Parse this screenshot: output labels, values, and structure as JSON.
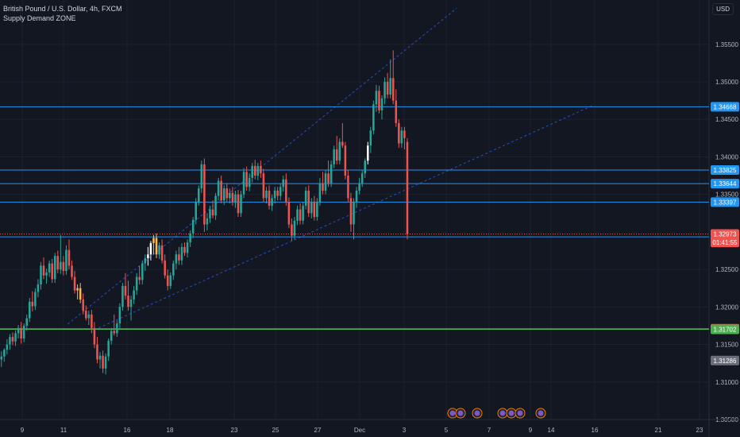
{
  "header": {
    "title": "British Pound / U.S. Dollar, 4h, FXCM",
    "indicator": "Supply Demand ZONE"
  },
  "currency_button": "USD",
  "colors": {
    "background": "#131722",
    "grid": "#1e222d",
    "up": "#26a69a",
    "down": "#ef5350",
    "highlight": "#ffb74d",
    "white_candle": "#ffffff",
    "zone_line": "#2196f3",
    "green_line": "#4caf50",
    "channel": "#2962ff",
    "axis_text": "#b2b5be"
  },
  "chart_data": {
    "type": "candlestick",
    "title": "British Pound / U.S. Dollar, 4h, FXCM",
    "ylim": [
      1.305,
      1.359
    ],
    "y_ticks": [
      "1.35500",
      "1.35000",
      "1.34500",
      "1.34000",
      "1.33500",
      "1.32500",
      "1.32000",
      "1.31500",
      "1.31000",
      "1.30500"
    ],
    "x_ticks": [
      "9",
      "11",
      "16",
      "18",
      "23",
      "25",
      "27",
      "Dec",
      "3",
      "5",
      "7",
      "9",
      "14",
      "16",
      "21",
      "23"
    ],
    "grid": true,
    "horizontal_levels": [
      {
        "value": 1.34668,
        "label": "1.34668",
        "color": "#2196f3"
      },
      {
        "value": 1.33825,
        "label": "1.33825",
        "color": "#2196f3"
      },
      {
        "value": 1.33644,
        "label": "1.33644",
        "color": "#2196f3"
      },
      {
        "value": 1.33397,
        "label": "1.33397",
        "color": "#2196f3"
      },
      {
        "value": 1.32934,
        "label": "1.32934",
        "color": "#2196f3"
      },
      {
        "value": 1.3171,
        "label": "1.31710",
        "color": "#ef5350"
      },
      {
        "value": 1.31702,
        "label": "1.31702",
        "color": "#4caf50"
      }
    ],
    "price_tags": [
      {
        "value": 1.32973,
        "label": "1.32973",
        "color": "#ef5350"
      },
      {
        "value": 1.3286,
        "label": "01:41:55",
        "color": "#ef5350"
      },
      {
        "value": 1.31286,
        "label": "1.31286",
        "color": "#6a6d78"
      }
    ],
    "last_price": 1.32973,
    "channel": [
      {
        "from_bar": 24,
        "from_price": 1.3177,
        "to_bar": 162,
        "to_price": 1.3598
      },
      {
        "from_bar": 35,
        "from_price": 1.3172,
        "to_bar": 210,
        "to_price": 1.3468
      }
    ],
    "candles": [
      [
        1.313,
        1.3141,
        1.312,
        1.3134,
        "u"
      ],
      [
        1.3134,
        1.3145,
        1.3127,
        1.3143,
        "u"
      ],
      [
        1.3143,
        1.3157,
        1.3137,
        1.315,
        "u"
      ],
      [
        1.315,
        1.3164,
        1.3143,
        1.316,
        "u"
      ],
      [
        1.316,
        1.3166,
        1.3149,
        1.3154,
        "d"
      ],
      [
        1.3154,
        1.3169,
        1.3148,
        1.3165,
        "u"
      ],
      [
        1.3165,
        1.3176,
        1.3158,
        1.3172,
        "u"
      ],
      [
        1.3172,
        1.318,
        1.3151,
        1.3158,
        "d"
      ],
      [
        1.3158,
        1.3178,
        1.3153,
        1.3175,
        "u"
      ],
      [
        1.3175,
        1.319,
        1.3168,
        1.3185,
        "u"
      ],
      [
        1.3185,
        1.3212,
        1.318,
        1.3207,
        "u"
      ],
      [
        1.3207,
        1.3221,
        1.3194,
        1.3201,
        "d"
      ],
      [
        1.3201,
        1.3225,
        1.3196,
        1.322,
        "u"
      ],
      [
        1.322,
        1.3237,
        1.3213,
        1.323,
        "u"
      ],
      [
        1.323,
        1.326,
        1.3223,
        1.3255,
        "u"
      ],
      [
        1.3255,
        1.3266,
        1.3237,
        1.3242,
        "d"
      ],
      [
        1.3242,
        1.3251,
        1.3231,
        1.3246,
        "u"
      ],
      [
        1.3246,
        1.3262,
        1.324,
        1.3258,
        "u"
      ],
      [
        1.3258,
        1.3264,
        1.3232,
        1.3237,
        "d"
      ],
      [
        1.3237,
        1.3272,
        1.3232,
        1.3268,
        "u"
      ],
      [
        1.3268,
        1.3275,
        1.3245,
        1.325,
        "d"
      ],
      [
        1.325,
        1.3296,
        1.3244,
        1.326,
        "u"
      ],
      [
        1.326,
        1.3268,
        1.3242,
        1.3248,
        "d"
      ],
      [
        1.3248,
        1.3282,
        1.3243,
        1.3276,
        "u"
      ],
      [
        1.3276,
        1.329,
        1.325,
        1.3255,
        "d"
      ],
      [
        1.3255,
        1.3262,
        1.3236,
        1.324,
        "d"
      ],
      [
        1.324,
        1.3248,
        1.3218,
        1.3222,
        "d"
      ],
      [
        1.3222,
        1.323,
        1.321,
        1.3225,
        "h"
      ],
      [
        1.3225,
        1.3232,
        1.3205,
        1.321,
        "h"
      ],
      [
        1.321,
        1.3218,
        1.319,
        1.3195,
        "d"
      ],
      [
        1.3195,
        1.3202,
        1.3182,
        1.3185,
        "d"
      ],
      [
        1.3185,
        1.3195,
        1.3176,
        1.319,
        "u"
      ],
      [
        1.319,
        1.3196,
        1.3165,
        1.3172,
        "d"
      ],
      [
        1.3172,
        1.318,
        1.3145,
        1.315,
        "d"
      ],
      [
        1.315,
        1.316,
        1.3125,
        1.313,
        "d"
      ],
      [
        1.313,
        1.314,
        1.3118,
        1.3135,
        "u"
      ],
      [
        1.3135,
        1.3142,
        1.3112,
        1.3118,
        "d"
      ],
      [
        1.3118,
        1.3138,
        1.311,
        1.3134,
        "u"
      ],
      [
        1.3134,
        1.3158,
        1.3128,
        1.3155,
        "u"
      ],
      [
        1.3155,
        1.3172,
        1.315,
        1.3168,
        "u"
      ],
      [
        1.3168,
        1.319,
        1.3162,
        1.3165,
        "d"
      ],
      [
        1.3165,
        1.3182,
        1.316,
        1.3178,
        "u"
      ],
      [
        1.3178,
        1.3205,
        1.3172,
        1.32,
        "u"
      ],
      [
        1.32,
        1.3232,
        1.3195,
        1.3228,
        "u"
      ],
      [
        1.3228,
        1.3245,
        1.321,
        1.3215,
        "d"
      ],
      [
        1.3215,
        1.3235,
        1.3195,
        1.32,
        "d"
      ],
      [
        1.32,
        1.3215,
        1.3182,
        1.321,
        "u"
      ],
      [
        1.321,
        1.3228,
        1.3204,
        1.3222,
        "u"
      ],
      [
        1.3222,
        1.3245,
        1.3216,
        1.324,
        "u"
      ],
      [
        1.324,
        1.3255,
        1.323,
        1.3236,
        "d"
      ],
      [
        1.3236,
        1.3262,
        1.323,
        1.3258,
        "u"
      ],
      [
        1.3258,
        1.327,
        1.3248,
        1.3265,
        "u"
      ],
      [
        1.3265,
        1.328,
        1.3255,
        1.327,
        "w"
      ],
      [
        1.327,
        1.3288,
        1.3262,
        1.3285,
        "w"
      ],
      [
        1.3285,
        1.3296,
        1.327,
        1.3292,
        "h"
      ],
      [
        1.3292,
        1.3298,
        1.3265,
        1.327,
        "h"
      ],
      [
        1.327,
        1.3286,
        1.3264,
        1.3282,
        "u"
      ],
      [
        1.3282,
        1.329,
        1.3258,
        1.3262,
        "d"
      ],
      [
        1.3262,
        1.327,
        1.3238,
        1.3242,
        "d"
      ],
      [
        1.3242,
        1.325,
        1.3222,
        1.3228,
        "d"
      ],
      [
        1.3228,
        1.3246,
        1.3224,
        1.3242,
        "u"
      ],
      [
        1.3242,
        1.3262,
        1.3236,
        1.3258,
        "u"
      ],
      [
        1.3258,
        1.3275,
        1.325,
        1.327,
        "u"
      ],
      [
        1.327,
        1.328,
        1.3256,
        1.3262,
        "d"
      ],
      [
        1.3262,
        1.3285,
        1.3256,
        1.328,
        "u"
      ],
      [
        1.328,
        1.3286,
        1.3268,
        1.3272,
        "d"
      ],
      [
        1.3272,
        1.329,
        1.3266,
        1.3286,
        "u"
      ],
      [
        1.3286,
        1.3302,
        1.328,
        1.3298,
        "u"
      ],
      [
        1.3298,
        1.332,
        1.3292,
        1.3316,
        "u"
      ],
      [
        1.3316,
        1.3345,
        1.331,
        1.334,
        "u"
      ],
      [
        1.334,
        1.3362,
        1.3335,
        1.3358,
        "u"
      ],
      [
        1.3358,
        1.3395,
        1.3352,
        1.339,
        "u"
      ],
      [
        1.339,
        1.3398,
        1.33,
        1.331,
        "d"
      ],
      [
        1.331,
        1.3325,
        1.3302,
        1.3318,
        "u"
      ],
      [
        1.3318,
        1.3335,
        1.3312,
        1.333,
        "u"
      ],
      [
        1.333,
        1.3342,
        1.3318,
        1.3322,
        "d"
      ],
      [
        1.3322,
        1.3352,
        1.3316,
        1.3348,
        "u"
      ],
      [
        1.3348,
        1.3372,
        1.3342,
        1.3368,
        "u"
      ],
      [
        1.3368,
        1.3375,
        1.3338,
        1.3342,
        "d"
      ],
      [
        1.3342,
        1.3362,
        1.3336,
        1.3358,
        "u"
      ],
      [
        1.3358,
        1.3365,
        1.334,
        1.3345,
        "d"
      ],
      [
        1.3345,
        1.3358,
        1.3338,
        1.3352,
        "u"
      ],
      [
        1.3352,
        1.336,
        1.3335,
        1.334,
        "d"
      ],
      [
        1.334,
        1.3355,
        1.3332,
        1.335,
        "u"
      ],
      [
        1.335,
        1.3356,
        1.332,
        1.3325,
        "d"
      ],
      [
        1.3325,
        1.3355,
        1.332,
        1.335,
        "u"
      ],
      [
        1.335,
        1.3385,
        1.3345,
        1.338,
        "u"
      ],
      [
        1.338,
        1.3387,
        1.3355,
        1.336,
        "d"
      ],
      [
        1.336,
        1.3378,
        1.3354,
        1.3372,
        "u"
      ],
      [
        1.3372,
        1.3392,
        1.3366,
        1.3388,
        "u"
      ],
      [
        1.3388,
        1.3396,
        1.337,
        1.3375,
        "d"
      ],
      [
        1.3375,
        1.3392,
        1.3369,
        1.3388,
        "u"
      ],
      [
        1.3388,
        1.3395,
        1.3372,
        1.3378,
        "d"
      ],
      [
        1.3378,
        1.3384,
        1.334,
        1.3345,
        "d"
      ],
      [
        1.3345,
        1.336,
        1.3338,
        1.3355,
        "u"
      ],
      [
        1.3355,
        1.3362,
        1.333,
        1.3335,
        "d"
      ],
      [
        1.3335,
        1.335,
        1.3328,
        1.3345,
        "u"
      ],
      [
        1.3345,
        1.336,
        1.3338,
        1.3355,
        "u"
      ],
      [
        1.3355,
        1.336,
        1.3342,
        1.3348,
        "d"
      ],
      [
        1.3348,
        1.3365,
        1.3342,
        1.336,
        "u"
      ],
      [
        1.336,
        1.3375,
        1.3354,
        1.337,
        "u"
      ],
      [
        1.337,
        1.3378,
        1.3335,
        1.334,
        "d"
      ],
      [
        1.334,
        1.3346,
        1.3305,
        1.331,
        "d"
      ],
      [
        1.331,
        1.3318,
        1.3288,
        1.3295,
        "d"
      ],
      [
        1.3295,
        1.332,
        1.329,
        1.3315,
        "u"
      ],
      [
        1.3315,
        1.3335,
        1.3309,
        1.333,
        "u"
      ],
      [
        1.333,
        1.3338,
        1.331,
        1.3315,
        "d"
      ],
      [
        1.3315,
        1.334,
        1.331,
        1.3335,
        "u"
      ],
      [
        1.3335,
        1.336,
        1.333,
        1.3355,
        "u"
      ],
      [
        1.3355,
        1.3362,
        1.332,
        1.3325,
        "d"
      ],
      [
        1.3325,
        1.3345,
        1.3318,
        1.334,
        "u"
      ],
      [
        1.334,
        1.3348,
        1.3315,
        1.332,
        "d"
      ],
      [
        1.332,
        1.3345,
        1.3315,
        1.334,
        "u"
      ],
      [
        1.334,
        1.3372,
        1.3335,
        1.3365,
        "u"
      ],
      [
        1.3365,
        1.338,
        1.335,
        1.3355,
        "d"
      ],
      [
        1.3355,
        1.3382,
        1.335,
        1.3378,
        "u"
      ],
      [
        1.3378,
        1.3395,
        1.336,
        1.3365,
        "d"
      ],
      [
        1.3365,
        1.3395,
        1.336,
        1.339,
        "u"
      ],
      [
        1.339,
        1.3415,
        1.3385,
        1.341,
        "u"
      ],
      [
        1.341,
        1.3428,
        1.339,
        1.3395,
        "d"
      ],
      [
        1.3395,
        1.3425,
        1.339,
        1.342,
        "u"
      ],
      [
        1.342,
        1.3445,
        1.3412,
        1.3415,
        "d"
      ],
      [
        1.3415,
        1.342,
        1.337,
        1.3375,
        "d"
      ],
      [
        1.3375,
        1.3382,
        1.334,
        1.3345,
        "d"
      ],
      [
        1.3345,
        1.3352,
        1.33,
        1.331,
        "d"
      ],
      [
        1.331,
        1.3345,
        1.329,
        1.334,
        "u"
      ],
      [
        1.334,
        1.336,
        1.3332,
        1.3355,
        "u"
      ],
      [
        1.3355,
        1.3372,
        1.335,
        1.3365,
        "u"
      ],
      [
        1.3365,
        1.3382,
        1.336,
        1.3378,
        "u"
      ],
      [
        1.3378,
        1.3398,
        1.3372,
        1.3395,
        "u"
      ],
      [
        1.3395,
        1.342,
        1.339,
        1.3415,
        "w"
      ],
      [
        1.3415,
        1.344,
        1.3405,
        1.3435,
        "u"
      ],
      [
        1.3435,
        1.3475,
        1.343,
        1.347,
        "u"
      ],
      [
        1.347,
        1.3496,
        1.346,
        1.3488,
        "u"
      ],
      [
        1.3488,
        1.3495,
        1.3458,
        1.3462,
        "d"
      ],
      [
        1.3462,
        1.3482,
        1.345,
        1.3478,
        "u"
      ],
      [
        1.3478,
        1.3506,
        1.347,
        1.35,
        "u"
      ],
      [
        1.35,
        1.3512,
        1.3478,
        1.3483,
        "d"
      ],
      [
        1.3483,
        1.353,
        1.3478,
        1.3505,
        "u"
      ],
      [
        1.3505,
        1.3542,
        1.347,
        1.3475,
        "d"
      ],
      [
        1.3475,
        1.349,
        1.344,
        1.3445,
        "d"
      ],
      [
        1.3445,
        1.345,
        1.3412,
        1.3418,
        "d"
      ],
      [
        1.3418,
        1.344,
        1.3412,
        1.3435,
        "u"
      ],
      [
        1.3435,
        1.344,
        1.341,
        1.3425,
        "d"
      ],
      [
        1.342,
        1.3425,
        1.329,
        1.3297,
        "d"
      ]
    ]
  }
}
